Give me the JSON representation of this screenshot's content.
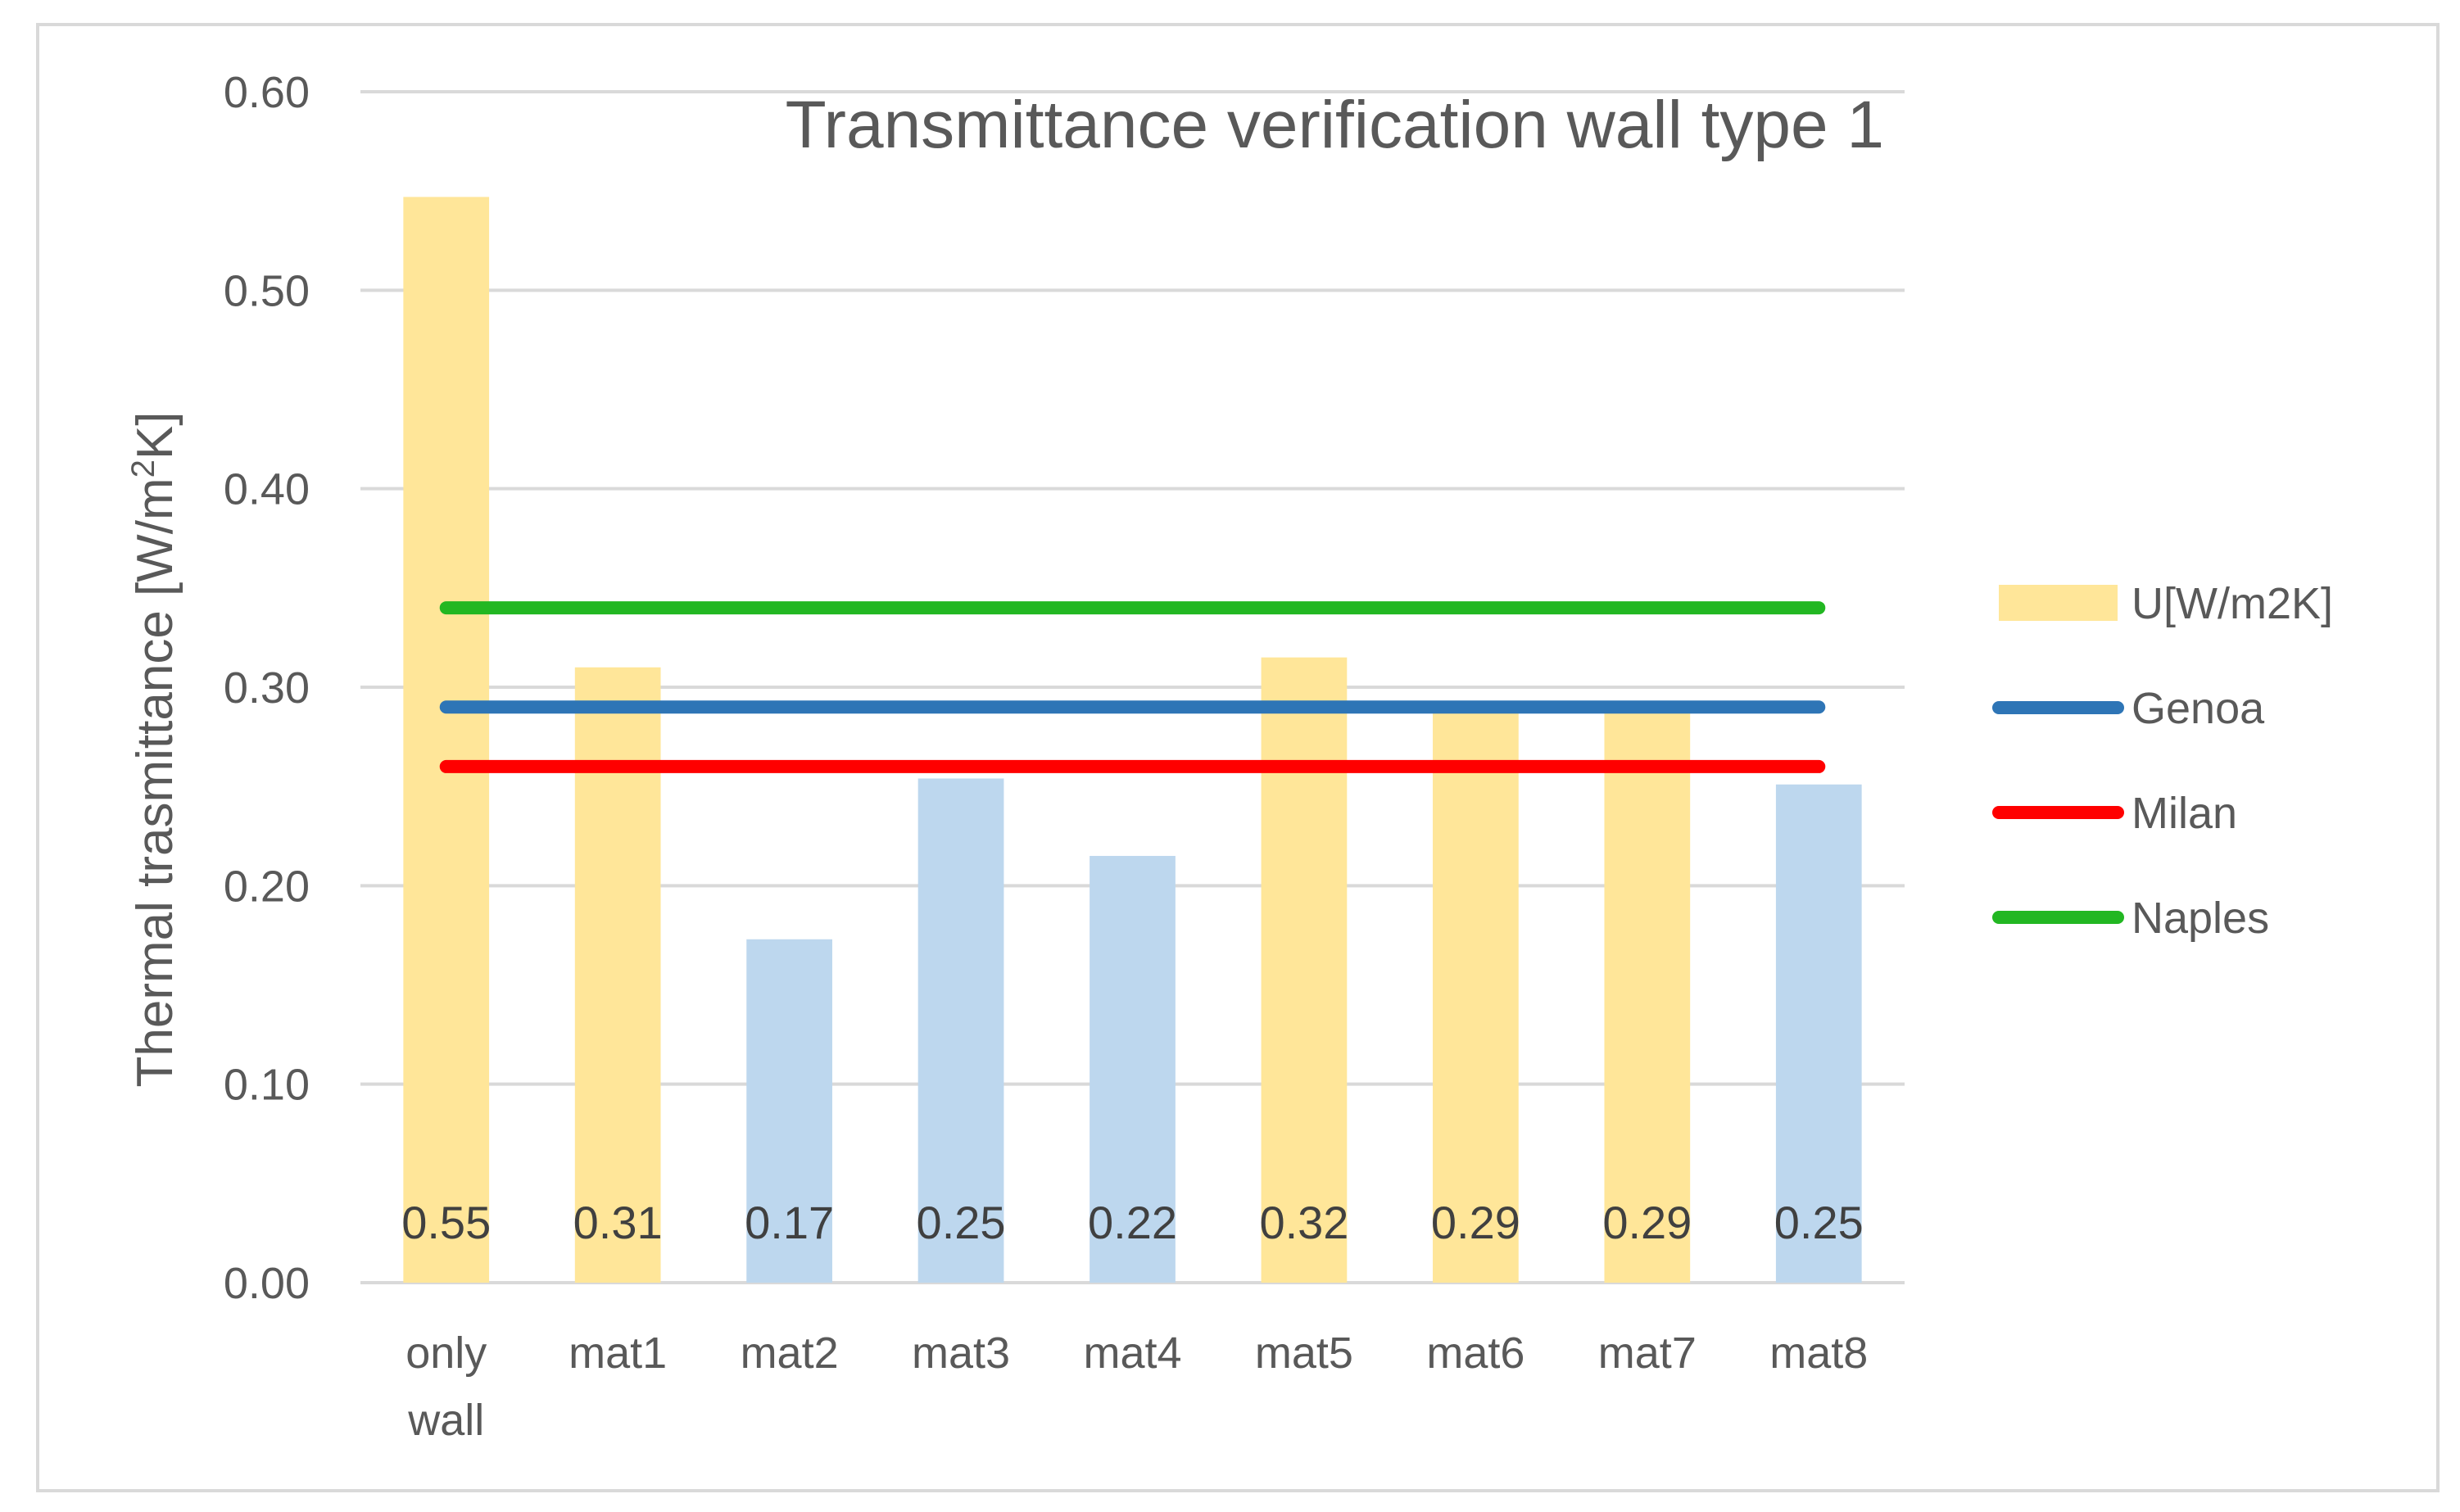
{
  "chart_data": {
    "type": "bar",
    "title": "Transmittance verification wall type 1",
    "ylabel_main": "Thermal trasmittance [W/m",
    "ylabel_sup": "2",
    "ylabel_tail": "K]",
    "xlabel": "",
    "ylim": [
      0,
      0.6
    ],
    "yticks": [
      "0.00",
      "0.10",
      "0.20",
      "0.30",
      "0.40",
      "0.50",
      "0.60"
    ],
    "ytick_values": [
      0,
      0.1,
      0.2,
      0.3,
      0.4,
      0.5,
      0.6
    ],
    "categories": [
      [
        "only",
        "wall"
      ],
      [
        "mat1"
      ],
      [
        "mat2"
      ],
      [
        "mat3"
      ],
      [
        "mat4"
      ],
      [
        "mat5"
      ],
      [
        "mat6"
      ],
      [
        "mat7"
      ],
      [
        "mat8"
      ]
    ],
    "bar_series": {
      "name": "U[W/m2K]",
      "values": [
        0.547,
        0.31,
        0.173,
        0.254,
        0.215,
        0.315,
        0.29,
        0.29,
        0.251
      ],
      "labels": [
        "0.55",
        "0.31",
        "0.17",
        "0.25",
        "0.22",
        "0.32",
        "0.29",
        "0.29",
        "0.25"
      ],
      "bar_colors": [
        "#FFE699",
        "#FFE699",
        "#BDD7EE",
        "#BDD7EE",
        "#BDD7EE",
        "#FFE699",
        "#FFE699",
        "#FFE699",
        "#BDD7EE"
      ]
    },
    "line_series": [
      {
        "name": "Genoa",
        "value": 0.29,
        "color": "#2E75B6"
      },
      {
        "name": "Milan",
        "value": 0.26,
        "color": "#FF0000"
      },
      {
        "name": "Naples",
        "value": 0.34,
        "color": "#22B722"
      }
    ],
    "legend_position": "right",
    "grid": true
  }
}
